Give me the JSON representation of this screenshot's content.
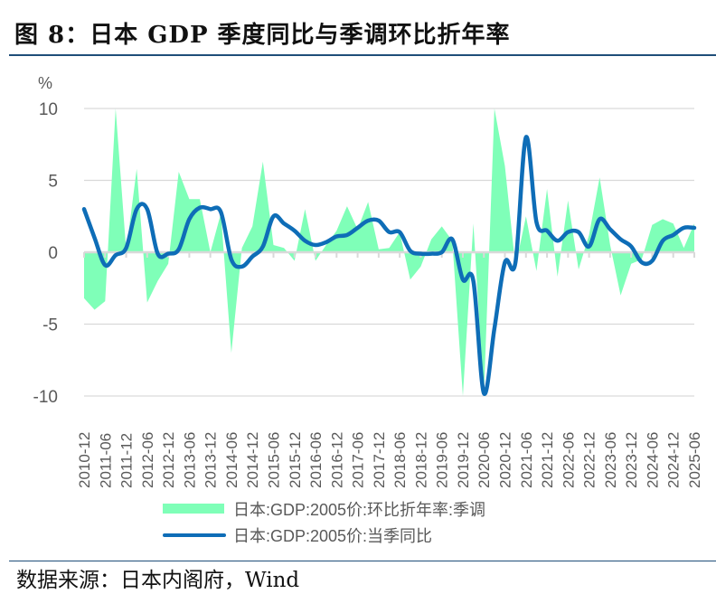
{
  "header": {
    "title": "图 8：日本 GDP 季度同比与季调环比折年率"
  },
  "footer": {
    "source": "数据来源：日本内阁府，Wind"
  },
  "colors": {
    "area": "#7fffb8",
    "line": "#0e6db7",
    "grid": "#d9d9d9",
    "axis_text": "#595959",
    "rule": "#1f4e79"
  },
  "chart_data": {
    "type": "area+line",
    "title": "日本 GDP 季度同比与季调环比折年率",
    "ylabel": "%",
    "xlabel": "",
    "ylim": [
      -10,
      10
    ],
    "yticks": [
      10,
      5,
      0,
      -5,
      -10
    ],
    "grid": true,
    "legend_position": "bottom",
    "x_tick_labels": [
      "2010-12",
      "2011-06",
      "2011-12",
      "2012-06",
      "2012-12",
      "2013-06",
      "2013-12",
      "2014-06",
      "2014-12",
      "2015-06",
      "2015-12",
      "2016-06",
      "2016-12",
      "2017-06",
      "2017-12",
      "2018-06",
      "2018-12",
      "2019-06",
      "2019-12",
      "2020-06",
      "2020-12",
      "2021-06",
      "2021-12",
      "2022-06",
      "2022-12",
      "2023-06",
      "2023-12",
      "2024-06",
      "2024-12",
      "2025-06"
    ],
    "x": [
      "2010-12",
      "2011-03",
      "2011-06",
      "2011-09",
      "2011-12",
      "2012-03",
      "2012-06",
      "2012-09",
      "2012-12",
      "2013-03",
      "2013-06",
      "2013-09",
      "2013-12",
      "2014-03",
      "2014-06",
      "2014-09",
      "2014-12",
      "2015-03",
      "2015-06",
      "2015-09",
      "2015-12",
      "2016-03",
      "2016-06",
      "2016-09",
      "2016-12",
      "2017-03",
      "2017-06",
      "2017-09",
      "2017-12",
      "2018-03",
      "2018-06",
      "2018-09",
      "2018-12",
      "2019-03",
      "2019-06",
      "2019-09",
      "2019-12",
      "2020-03",
      "2020-06",
      "2020-09",
      "2020-12",
      "2021-03",
      "2021-06",
      "2021-09",
      "2021-12",
      "2022-03",
      "2022-06",
      "2022-09",
      "2022-12",
      "2023-03",
      "2023-06",
      "2023-09",
      "2023-12",
      "2024-03",
      "2024-06",
      "2024-09",
      "2024-12",
      "2025-03",
      "2025-06"
    ],
    "series": [
      {
        "name": "日本:GDP:2005价:环比折年率:季调",
        "type": "area",
        "color": "#7fffb8",
        "values": [
          -3.2,
          -4.0,
          -3.4,
          10.0,
          0.1,
          5.8,
          -3.5,
          -2.0,
          -0.8,
          5.6,
          3.7,
          3.7,
          0.0,
          2.7,
          -7.0,
          0.3,
          1.8,
          6.3,
          0.5,
          0.3,
          -0.6,
          3.0,
          -0.6,
          0.5,
          1.5,
          3.2,
          1.6,
          3.5,
          0.2,
          0.3,
          1.4,
          -1.9,
          -1.0,
          0.9,
          1.8,
          0.8,
          -10.0,
          2.0,
          -10.0,
          10.0,
          6.0,
          -1.0,
          2.5,
          -1.3,
          4.4,
          -1.7,
          3.6,
          -1.2,
          1.2,
          5.2,
          0.5,
          -3.0,
          -0.8,
          -0.5,
          1.9,
          2.3,
          2.0,
          0.3,
          2.0
        ]
      },
      {
        "name": "日本:GDP:2005价:当季同比",
        "type": "line",
        "color": "#0e6db7",
        "values": [
          3.0,
          1.0,
          -0.9,
          -0.2,
          0.3,
          3.0,
          3.0,
          -0.1,
          -0.1,
          0.2,
          2.3,
          3.1,
          3.0,
          2.8,
          -0.5,
          -1.0,
          -0.3,
          0.4,
          2.5,
          2.0,
          1.5,
          0.8,
          0.5,
          0.7,
          1.1,
          1.2,
          1.7,
          2.2,
          2.2,
          1.4,
          1.4,
          0.1,
          -0.1,
          -0.1,
          0.0,
          0.9,
          -1.9,
          -2.0,
          -9.8,
          -5.3,
          -0.7,
          -0.7,
          8.0,
          2.1,
          1.5,
          0.8,
          1.4,
          1.4,
          0.4,
          2.3,
          1.6,
          0.9,
          0.4,
          -0.7,
          -0.6,
          0.8,
          1.2,
          1.7,
          1.7
        ]
      }
    ]
  },
  "legend": {
    "items": [
      {
        "label": "日本:GDP:2005价:环比折年率:季调",
        "swatch": "area"
      },
      {
        "label": "日本:GDP:2005价:当季同比",
        "swatch": "line"
      }
    ]
  },
  "axis": {
    "y_unit": "%"
  }
}
